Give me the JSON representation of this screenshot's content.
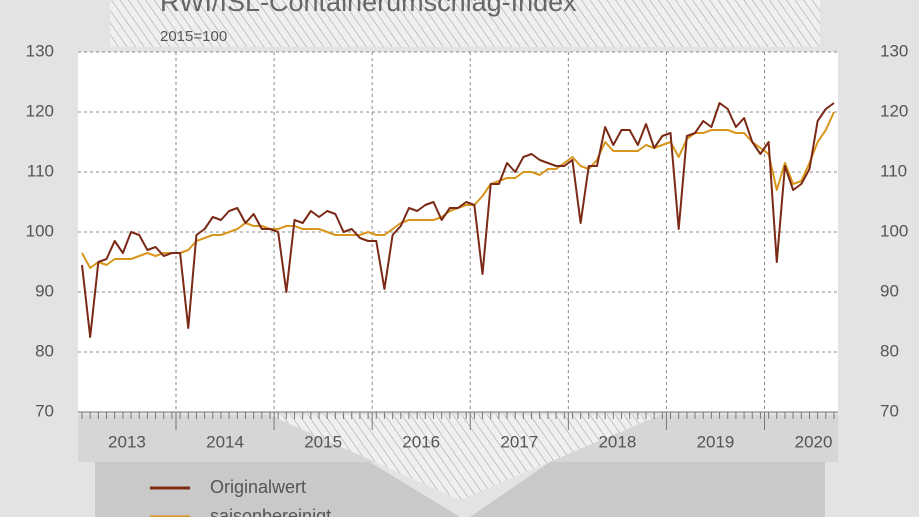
{
  "chart_data": {
    "type": "line",
    "title": "RWI/ISL-Containerumschlag-Index",
    "subtitle": "2015=100",
    "categories": [
      null,
      null,
      null,
      null,
      null,
      null,
      "2013",
      null,
      null,
      null,
      null,
      null,
      null,
      null,
      null,
      null,
      null,
      null,
      "2014",
      null,
      null,
      null,
      null,
      null,
      null,
      null,
      null,
      null,
      null,
      null,
      "2015",
      null,
      null,
      null,
      null,
      null,
      null,
      null,
      null,
      null,
      null,
      null,
      "2016",
      null,
      null,
      null,
      null,
      null,
      null,
      null,
      null,
      null,
      null,
      null,
      "2017",
      null,
      null,
      null,
      null,
      null,
      null,
      null,
      null,
      null,
      null,
      null,
      "2018",
      null,
      null,
      null,
      null,
      null,
      null,
      null,
      null,
      null,
      null,
      null,
      "2019",
      null,
      null,
      null,
      null,
      null,
      null,
      null,
      null,
      null,
      null,
      null,
      "2020",
      null,
      null
    ],
    "series": [
      {
        "name": "Originalwert",
        "color": "#7a2a16",
        "values": [
          94.5,
          82.5,
          95,
          95.5,
          98.5,
          96.5,
          100,
          99.5,
          97,
          97.5,
          96,
          96.5,
          96.5,
          84,
          99.5,
          100.5,
          102.5,
          102,
          103.5,
          104,
          101.5,
          103,
          100.5,
          100.5,
          100,
          90,
          102,
          101.5,
          103.5,
          102.5,
          103.5,
          103,
          100,
          100.5,
          99,
          98.5,
          98.5,
          90.5,
          99.5,
          101,
          104,
          103.5,
          104.5,
          105,
          102,
          104,
          104,
          105,
          104.5,
          93,
          108,
          108,
          111.5,
          110,
          112.5,
          113,
          112,
          111.5,
          111,
          111,
          112,
          101.5,
          111,
          111,
          117.5,
          114.5,
          117,
          117,
          114.5,
          118,
          114,
          116,
          116.5,
          100.5,
          116,
          116.5,
          118.5,
          117.5,
          121.5,
          120.5,
          117.5,
          119,
          115,
          113,
          115,
          95,
          111,
          107,
          108,
          110.5,
          118.5,
          120.5,
          121.5
        ]
      },
      {
        "name": "saisonbereinigt",
        "color": "#d9961c",
        "values": [
          96.5,
          94,
          95,
          94.5,
          95.5,
          95.5,
          95.5,
          96,
          96.5,
          96,
          96.5,
          96.5,
          96.5,
          97,
          98.5,
          99,
          99.5,
          99.5,
          100,
          100.5,
          101.5,
          101,
          101,
          100.5,
          100.5,
          101,
          101,
          100.5,
          100.5,
          100.5,
          100,
          99.5,
          99.5,
          99.5,
          99.5,
          100,
          99.5,
          99.5,
          100.5,
          101.5,
          102,
          102,
          102,
          102,
          102.5,
          103.5,
          104,
          104.5,
          104.5,
          106,
          108,
          108.5,
          109,
          109,
          110,
          110,
          109.5,
          110.5,
          110.5,
          111.5,
          112.5,
          111,
          110.5,
          112,
          115,
          113.5,
          113.5,
          113.5,
          113.5,
          114.5,
          114,
          114.5,
          115,
          112.5,
          115.5,
          116.5,
          116.5,
          117,
          117,
          117,
          116.5,
          116.5,
          115,
          114,
          113,
          107,
          111.5,
          108,
          108.5,
          111.5,
          115,
          117,
          120
        ]
      }
    ],
    "ylim": [
      70,
      130
    ],
    "yticks": [
      70,
      80,
      90,
      100,
      110,
      120,
      130
    ],
    "grid": true
  }
}
